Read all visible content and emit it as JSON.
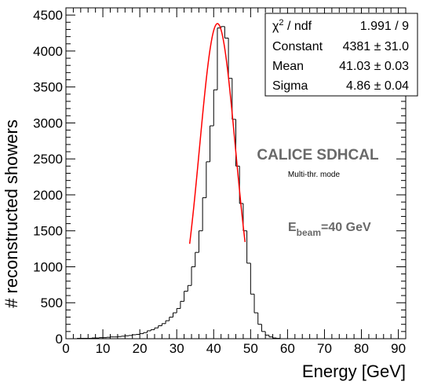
{
  "chart_data": {
    "type": "histogram",
    "xlabel": "Energy [GeV]",
    "ylabel": "# reconstructed showers",
    "xlim": [
      0,
      92
    ],
    "ylim": [
      0,
      4600
    ],
    "x_ticks": [
      0,
      10,
      20,
      30,
      40,
      50,
      60,
      70,
      80,
      90
    ],
    "y_ticks": [
      0,
      500,
      1000,
      1500,
      2000,
      2500,
      3000,
      3500,
      4000,
      4500
    ],
    "bin_width": 1,
    "bin_start": 0,
    "values": [
      0,
      0,
      0,
      5,
      5,
      5,
      5,
      10,
      10,
      15,
      15,
      20,
      25,
      25,
      30,
      35,
      40,
      45,
      55,
      60,
      70,
      85,
      110,
      125,
      150,
      180,
      210,
      250,
      300,
      360,
      420,
      520,
      660,
      740,
      1000,
      1200,
      1500,
      1960,
      2460,
      2960,
      3460,
      4320,
      4340,
      4180,
      3620,
      3050,
      2400,
      1880,
      1500,
      1050,
      620,
      360,
      200,
      100,
      50,
      25,
      10,
      5,
      0,
      0,
      0,
      0,
      0,
      0,
      0,
      0,
      0,
      0,
      0,
      0,
      0,
      0,
      0,
      0,
      0,
      0,
      0,
      0,
      0,
      0,
      0,
      0,
      0,
      0,
      0,
      0,
      0,
      0,
      0,
      0,
      0,
      0
    ],
    "series": [
      {
        "name": "data",
        "color": "#000000"
      },
      {
        "name": "gaussian-fit",
        "color": "#ff0000",
        "function": "gaussian",
        "constant": 4381,
        "mean": 41.03,
        "sigma": 4.86,
        "range": [
          33.5,
          48.5
        ]
      }
    ],
    "stats_box": [
      {
        "label": "χ² / ndf",
        "value": "1.991 / 9"
      },
      {
        "label": "Constant",
        "value": "4381 ± 31.0"
      },
      {
        "label": "Mean",
        "value": "41.03 ± 0.03"
      },
      {
        "label": "Sigma",
        "value": "4.86 ± 0.04"
      }
    ],
    "annotations": {
      "title": "CALICE SDHCAL",
      "subtitle": "Multi-thr. mode",
      "beam_main": "E",
      "beam_sub": "beam",
      "beam_value": "=40 GeV"
    }
  }
}
